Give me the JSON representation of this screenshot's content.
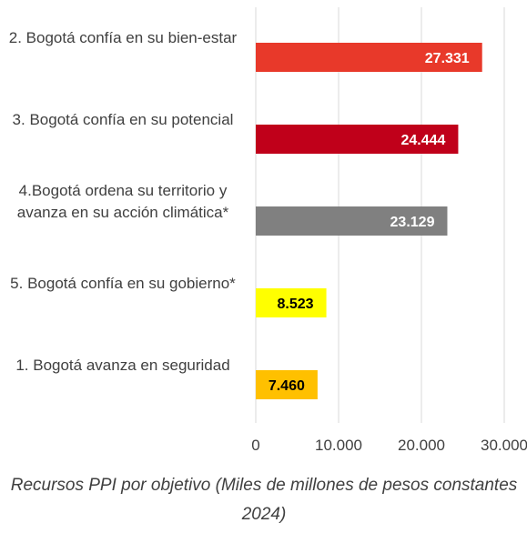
{
  "chart_data": {
    "type": "bar",
    "orientation": "horizontal",
    "x_label": "Recursos PPI por objetivo (Miles de millones de pe­sos constantes 2024)",
    "categories": [
      "2. Bogotá confía en su bien-estar",
      "3. Bogotá confía en su potencial",
      "4.Bogotá ordena su territorio y avanza en  su acción climática*",
      "5. Bogotá confía en su gobierno*",
      "1. Bogotá avanza en seguridad"
    ],
    "values": [
      27331,
      24444,
      23129,
      8523,
      7460
    ],
    "value_labels": [
      "27.331",
      "24.444",
      "23.129",
      "8.523",
      "7.460"
    ],
    "colors": [
      "#e8392a",
      "#c0001a",
      "#808080",
      "#ffff00",
      "#ffc000"
    ],
    "value_label_colors": [
      "#ffffff",
      "#ffffff",
      "#ffffff",
      "#000000",
      "#000000"
    ],
    "xlim": [
      0,
      30000
    ],
    "xticks": [
      0,
      {
        "value": 10000,
        "label": "10.000"
      },
      {
        "value": 20000,
        "label": "20.000"
      },
      {
        "value": 30000,
        "label": "30.000"
      }
    ],
    "grid": true
  }
}
